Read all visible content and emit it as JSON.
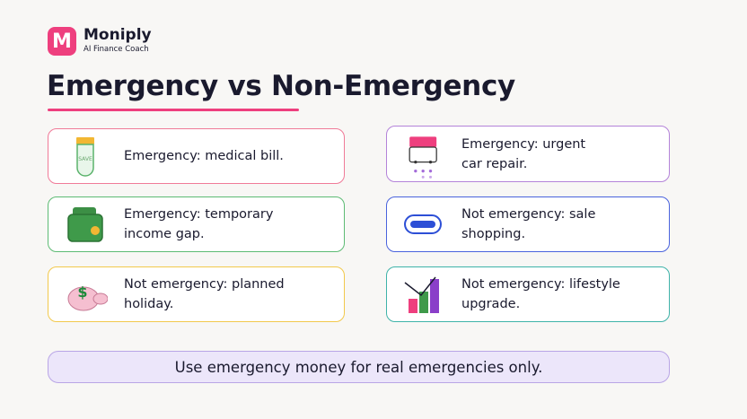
{
  "brand": {
    "logo_letter": "M",
    "name": "Moniply",
    "tagline": "AI Finance Coach"
  },
  "title": "Emergency vs Non-Emergency",
  "cards": [
    {
      "lines": [
        "Emergency: medical bill."
      ],
      "icon_label": "SAVE"
    },
    {
      "lines": [
        "Emergency: urgent",
        "car repair."
      ]
    },
    {
      "lines": [
        "Emergency: temporary",
        "income gap."
      ]
    },
    {
      "lines": [
        "Not emergency: sale",
        "shopping."
      ]
    },
    {
      "lines": [
        "Not emergency: planned",
        "holiday."
      ],
      "icon_label": "$"
    },
    {
      "lines": [
        "Not emergency: lifestyle",
        "upgrade."
      ]
    }
  ],
  "footer": "Use emergency money for real emergencies only."
}
